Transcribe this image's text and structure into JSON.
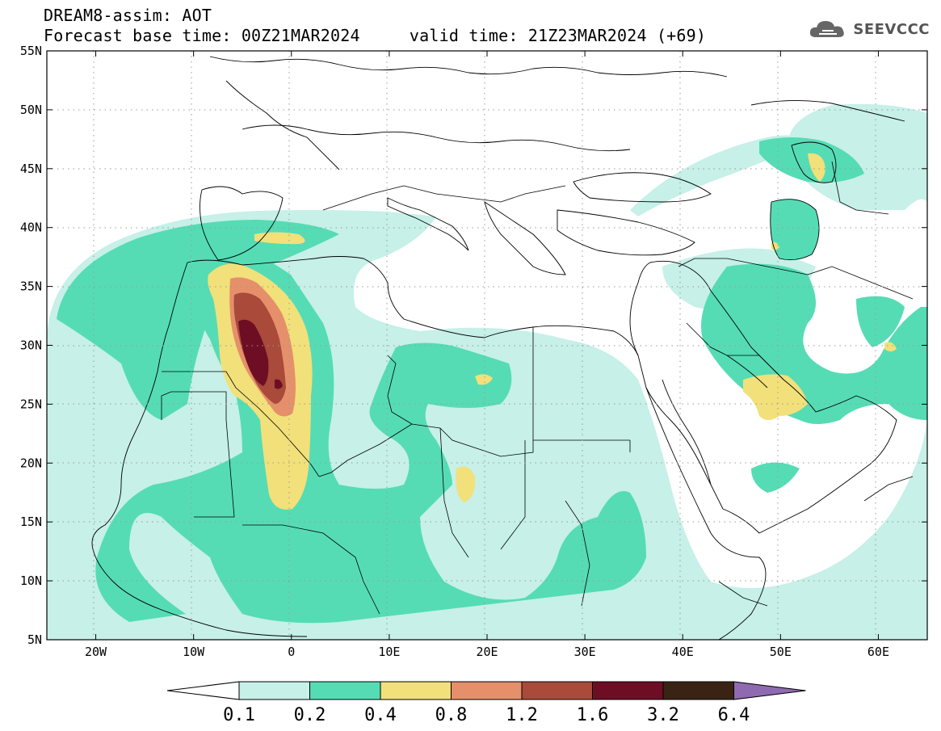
{
  "header": {
    "title_line1": "DREAM8-assim: AOT",
    "title_line2": "Forecast base time: 00Z21MAR2024     valid time: 21Z23MAR2024 (+69)"
  },
  "logo": {
    "text": "SEEVCCC",
    "icon": "cloud-logo-icon"
  },
  "map": {
    "lat_labels": [
      "55N",
      "50N",
      "45N",
      "40N",
      "35N",
      "30N",
      "25N",
      "20N",
      "15N",
      "10N",
      "5N"
    ],
    "lon_labels": [
      "20W",
      "10W",
      "0",
      "10E",
      "20E",
      "30E",
      "40E",
      "50E",
      "60E"
    ],
    "lat_range": [
      5,
      55
    ],
    "lon_range": [
      -25,
      65
    ],
    "gridlines": "dotted"
  },
  "colorbar": {
    "labels": [
      "0.1",
      "0.2",
      "0.4",
      "0.8",
      "1.2",
      "1.6",
      "3.2",
      "6.4"
    ],
    "colors": [
      "#ffffff",
      "#c6f0e8",
      "#55dcb5",
      "#f2e07a",
      "#e5906a",
      "#a94a3a",
      "#6e0e24",
      "#3a2314",
      "#8f6ab0"
    ]
  },
  "colors": {
    "level1": "#c6f0e8",
    "level2": "#55dcb5",
    "level3": "#f2e07a",
    "level4": "#e5906a",
    "level5": "#a94a3a",
    "level6": "#6e0e24"
  }
}
